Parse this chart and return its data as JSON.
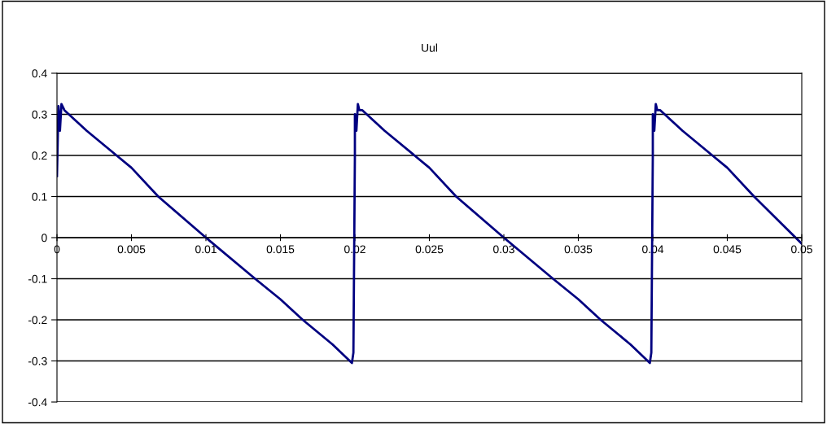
{
  "chart_data": {
    "type": "line",
    "title": "Uul",
    "x": [
      0,
      0.0001,
      0.0002,
      0.0003,
      0.0005,
      0.002,
      0.004,
      0.005,
      0.0068,
      0.01,
      0.0133,
      0.015,
      0.0165,
      0.0185,
      0.0198,
      0.0199,
      0.02,
      0.02,
      0.0201,
      0.0202,
      0.0203,
      0.0205,
      0.022,
      0.024,
      0.025,
      0.0268,
      0.03,
      0.0333,
      0.035,
      0.0365,
      0.0385,
      0.0398,
      0.0399,
      0.04,
      0.04,
      0.0401,
      0.0402,
      0.0403,
      0.0405,
      0.042,
      0.044,
      0.045,
      0.0468,
      0.05
    ],
    "series": [
      {
        "color": "#000080",
        "values": [
          0.15,
          0.32,
          0.26,
          0.325,
          0.31,
          0.26,
          0.2,
          0.17,
          0.1,
          0.0,
          -0.1,
          -0.15,
          -0.2,
          -0.26,
          -0.305,
          -0.28,
          0.2,
          0.3,
          0.26,
          0.325,
          0.31,
          0.31,
          0.26,
          0.2,
          0.17,
          0.1,
          0.0,
          -0.1,
          -0.15,
          -0.2,
          -0.26,
          -0.305,
          -0.28,
          0.2,
          0.3,
          0.26,
          0.325,
          0.31,
          0.31,
          0.26,
          0.2,
          0.17,
          0.1,
          -0.015
        ]
      }
    ],
    "xlim": [
      0,
      0.05
    ],
    "xticks": [
      0,
      0.005,
      0.01,
      0.015,
      0.02,
      0.025,
      0.03,
      0.035,
      0.04,
      0.045,
      0.05
    ],
    "ylim": [
      -0.4,
      0.4
    ],
    "yticks": [
      -0.4,
      -0.3,
      -0.2,
      -0.1,
      0,
      0.1,
      0.2,
      0.3,
      0.4
    ],
    "grid": "y",
    "marker": "none",
    "line_style": "solid"
  }
}
